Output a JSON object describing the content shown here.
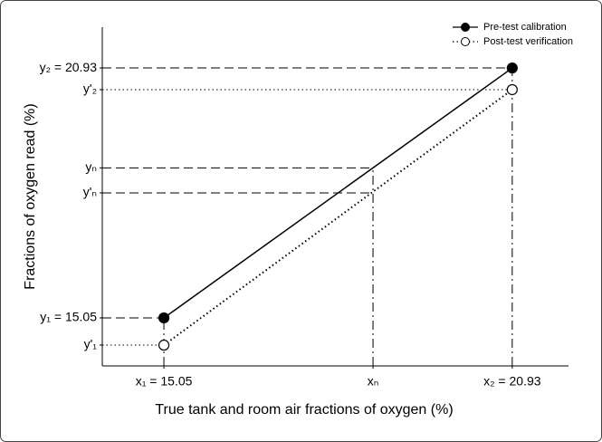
{
  "chart_data": {
    "type": "line",
    "x_label": "True tank and room air fractions of oxygen (%)",
    "y_label": "Fractions of oxygen read (%)",
    "x": [
      15.05,
      20.93
    ],
    "series": [
      {
        "name": "Pre-test calibration",
        "color": "#000000",
        "line_style": "solid",
        "marker": "filled",
        "values": [
          15.05,
          20.93
        ]
      },
      {
        "name": "Post-test verification",
        "color": "#000000",
        "line_style": "dotted",
        "marker": "open",
        "values": [
          14.41,
          20.42
        ]
      }
    ],
    "xlim": [
      14.01,
      21.88
    ],
    "ylim": [
      13.92,
      21.89
    ],
    "xticks": [
      {
        "value": 15.05,
        "label": "x₁ = 15.05"
      },
      {
        "value": 18.58,
        "label": "xₙ"
      },
      {
        "value": 20.93,
        "label": "x₂ = 20.93"
      }
    ],
    "yticks": [
      {
        "value": 14.41,
        "label": "y'₁"
      },
      {
        "value": 15.05,
        "label": "y₁ = 15.05"
      },
      {
        "value": 17.99,
        "label": "y'ₙ"
      },
      {
        "value": 18.58,
        "label": "yₙ"
      },
      {
        "value": 20.42,
        "label": "y'₂"
      },
      {
        "value": 20.93,
        "label": "y₂ = 20.93"
      }
    ],
    "legend": "upper right"
  }
}
